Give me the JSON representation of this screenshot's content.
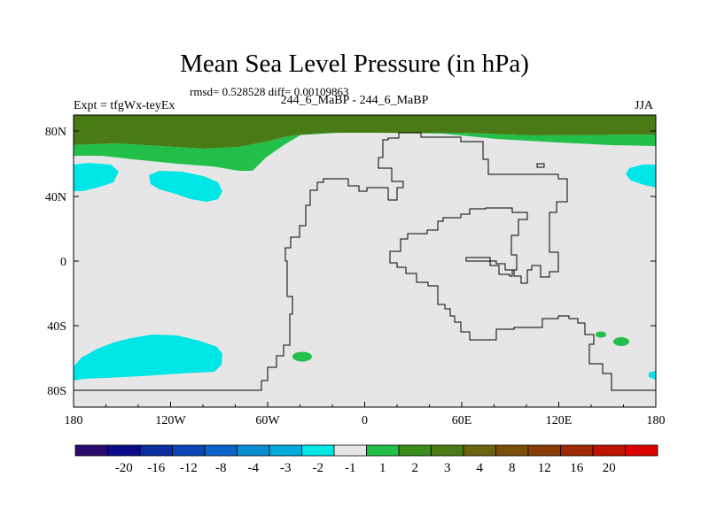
{
  "title": "Mean Sea Level Pressure (in hPa)",
  "stats": "rmsd= 0.528528 diff= 0.00109863",
  "experiment": "Expt = tfgWx-teyEx",
  "cases": "244_6_MaBP - 244_6_MaBP",
  "season": "JJA",
  "colors": {
    "land_neutral": "#e6e6e6",
    "cyan": "#00e5e5",
    "green": "#22c04a",
    "dark_green": "#4a7a16",
    "outline": "#000000"
  },
  "lat_ticks": [
    "80N",
    "40N",
    "0",
    "40S",
    "80S"
  ],
  "lon_ticks": [
    "180",
    "120W",
    "60W",
    "0",
    "60E",
    "120E",
    "180"
  ],
  "colorbar": {
    "colors": [
      "#2b0a6e",
      "#0c0c8a",
      "#0a2ea0",
      "#0a46b4",
      "#0a64c8",
      "#0a8cd2",
      "#00aadc",
      "#00e5e5",
      "#e6e6e6",
      "#22c04a",
      "#3c8c1c",
      "#4a7a16",
      "#6a6410",
      "#7a5008",
      "#8a3c06",
      "#a02804",
      "#c01402",
      "#dc0000"
    ],
    "labels": [
      "-20",
      "-16",
      "-12",
      "-8",
      "-4",
      "-3",
      "-2",
      "-1",
      "1",
      "2",
      "3",
      "4",
      "8",
      "12",
      "16",
      "20"
    ]
  }
}
